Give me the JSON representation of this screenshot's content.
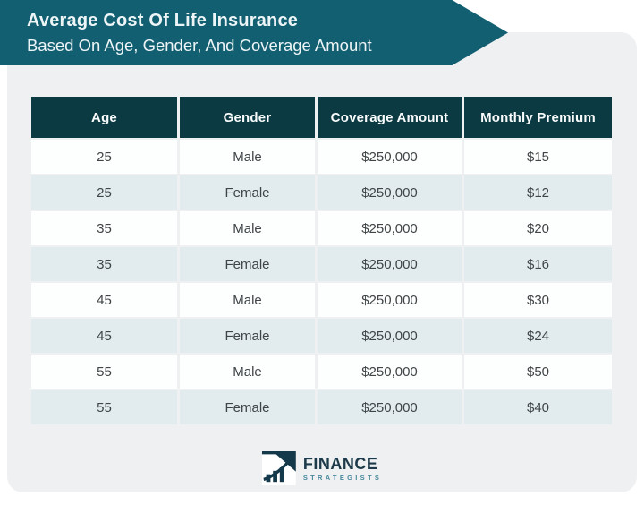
{
  "banner": {
    "title": "Average Cost Of Life Insurance",
    "subtitle": "Based On Age, Gender, And Coverage Amount"
  },
  "chart_data": {
    "type": "table",
    "title": "Average Cost Of Life Insurance Based On Age, Gender, And Coverage Amount",
    "columns": [
      "Age",
      "Gender",
      "Coverage Amount",
      "Monthly Premium"
    ],
    "rows": [
      [
        "25",
        "Male",
        "$250,000",
        "$15"
      ],
      [
        "25",
        "Female",
        "$250,000",
        "$12"
      ],
      [
        "35",
        "Male",
        "$250,000",
        "$20"
      ],
      [
        "35",
        "Female",
        "$250,000",
        "$16"
      ],
      [
        "45",
        "Male",
        "$250,000",
        "$30"
      ],
      [
        "45",
        "Female",
        "$250,000",
        "$24"
      ],
      [
        "55",
        "Male",
        "$250,000",
        "$50"
      ],
      [
        "55",
        "Female",
        "$250,000",
        "$40"
      ]
    ],
    "layout_hints": {
      "striped_rows": true,
      "first_data_row_background": "white",
      "alternate_row_background": "#e2ecef"
    }
  },
  "logo": {
    "name": "FINANCE",
    "subname": "STRATEGISTS"
  },
  "icons": {
    "logo_icon": "bar-chart-with-upward-arrow"
  },
  "colors": {
    "banner_teal": "#135f72",
    "header_bg": "#0c3a43",
    "row_alt": "#e2ecef",
    "card_bg": "#eef0f1",
    "cell_text": "#3f4447",
    "logo_dark": "#1d3a4a",
    "logo_teal": "#47889b"
  }
}
